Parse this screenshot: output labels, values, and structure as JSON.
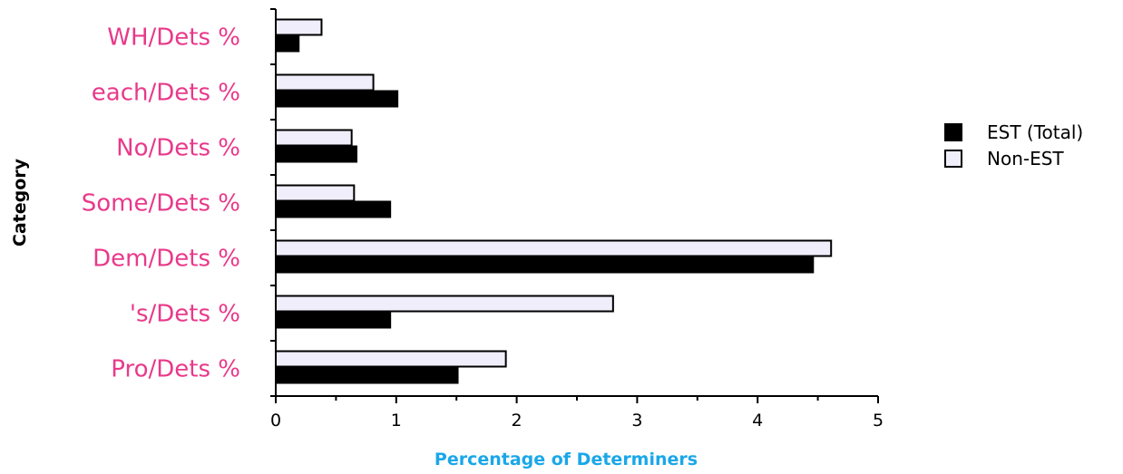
{
  "chart_data": {
    "type": "bar",
    "orientation": "horizontal",
    "categories": [
      "WH/Dets %",
      "each/Dets %",
      "No/Dets %",
      "Some/Dets %",
      "Dem/Dets %",
      "'s/Dets %",
      "Pro/Dets %"
    ],
    "series": [
      {
        "name": "EST (Total)",
        "values": [
          0.19,
          1.01,
          0.67,
          0.95,
          4.46,
          0.95,
          1.51
        ],
        "color": "#000000"
      },
      {
        "name": "Non-EST",
        "values": [
          0.38,
          0.81,
          0.63,
          0.65,
          4.61,
          2.8,
          1.91
        ],
        "color": "#f0eefb"
      }
    ],
    "xlabel": "Percentage of Determiners",
    "ylabel": "Category",
    "xlim": [
      0,
      5
    ],
    "xticks": [
      "0",
      "1",
      "2",
      "3",
      "4",
      "5"
    ],
    "grid": false,
    "legend_position": "right"
  },
  "colors": {
    "category_label": "#e8398a",
    "xlabel": "#1aa7e8",
    "est_fill": "#000000",
    "non_est_fill": "#f0eefb"
  }
}
